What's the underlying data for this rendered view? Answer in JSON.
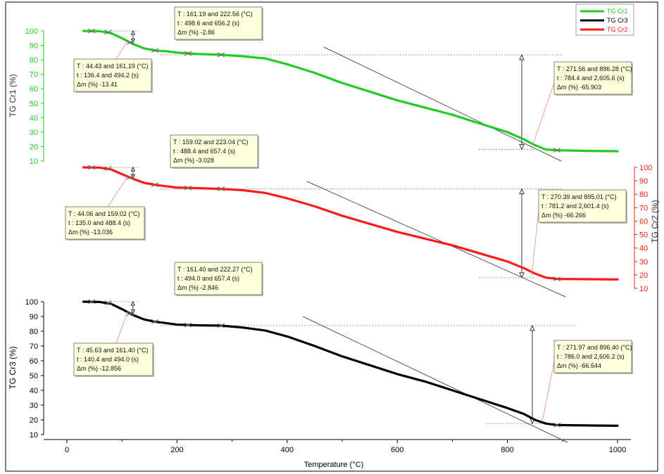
{
  "chart_data": {
    "type": "line",
    "xlabel": "Temperature (°C)",
    "x_ticks": [
      0,
      200,
      400,
      600,
      800,
      1000
    ],
    "xlim": [
      -40,
      1020
    ],
    "legend": {
      "placement": "top-right",
      "entries": [
        {
          "name": "TG Cr1",
          "color": "#22cc22"
        },
        {
          "name": "TG Cr3",
          "color": "#000000"
        },
        {
          "name": "TG Cr2",
          "color": "#ff1a1a"
        }
      ]
    },
    "panels": [
      {
        "series": "TG Cr1",
        "color": "#22cc22",
        "ylabel": "TG Cr1 (%)",
        "y_axis_side": "left",
        "y_ticks": [
          10,
          20,
          30,
          40,
          50,
          60,
          70,
          80,
          90,
          100
        ],
        "ylim": [
          10,
          100
        ],
        "points": [
          [
            30,
            100
          ],
          [
            60,
            99.8
          ],
          [
            80,
            98.5
          ],
          [
            100,
            95
          ],
          [
            120,
            91
          ],
          [
            140,
            88
          ],
          [
            160,
            86.5
          ],
          [
            180,
            86
          ],
          [
            200,
            85
          ],
          [
            240,
            84
          ],
          [
            280,
            83.5
          ],
          [
            320,
            82.5
          ],
          [
            360,
            81
          ],
          [
            400,
            77
          ],
          [
            450,
            71
          ],
          [
            500,
            64
          ],
          [
            550,
            58
          ],
          [
            600,
            52
          ],
          [
            650,
            47
          ],
          [
            700,
            42
          ],
          [
            750,
            36
          ],
          [
            800,
            30
          ],
          [
            830,
            25
          ],
          [
            850,
            21
          ],
          [
            870,
            18
          ],
          [
            890,
            17.5
          ],
          [
            950,
            17
          ],
          [
            1000,
            16.8
          ]
        ],
        "markers": [
          [
            45,
            100
          ],
          [
            75,
            99.2
          ],
          [
            115,
            92
          ],
          [
            160,
            86.5
          ],
          [
            220,
            84.5
          ],
          [
            280,
            83.5
          ],
          [
            890,
            17.5
          ]
        ],
        "annotations": [
          {
            "id": "left",
            "lines": [
              "T : 44.43 and 161.19 (°C)",
              "t : 136.4 and 494.2 (s)",
              "Δm (%) -13.41"
            ]
          },
          {
            "id": "mid",
            "lines": [
              "T : 161.19 and 222.56 (°C)",
              "t : 498.6 and 656.2 (s)",
              "Δm (%) -2.86"
            ]
          },
          {
            "id": "right",
            "lines": [
              "T : 271.56 and 896.28 (°C)",
              "t : 784.4 and 2,605.6 (s)",
              "Δm (%) -65.903"
            ]
          }
        ]
      },
      {
        "series": "TG Cr2",
        "color": "#ff1a1a",
        "ylabel": "TG Cr2 (%)",
        "y_axis_side": "right",
        "y_ticks": [
          10,
          20,
          30,
          40,
          50,
          60,
          70,
          80,
          90,
          100
        ],
        "ylim": [
          10,
          100
        ],
        "points": [
          [
            30,
            100
          ],
          [
            60,
            99.8
          ],
          [
            80,
            98.5
          ],
          [
            100,
            95
          ],
          [
            120,
            91.5
          ],
          [
            140,
            88.5
          ],
          [
            160,
            87
          ],
          [
            180,
            86
          ],
          [
            200,
            85
          ],
          [
            240,
            84.5
          ],
          [
            280,
            84
          ],
          [
            320,
            83
          ],
          [
            360,
            81
          ],
          [
            400,
            77
          ],
          [
            450,
            71
          ],
          [
            500,
            64
          ],
          [
            550,
            58
          ],
          [
            600,
            52
          ],
          [
            650,
            47
          ],
          [
            700,
            42
          ],
          [
            750,
            36
          ],
          [
            800,
            30
          ],
          [
            830,
            25
          ],
          [
            850,
            21
          ],
          [
            870,
            18
          ],
          [
            890,
            17
          ],
          [
            950,
            16.8
          ],
          [
            1000,
            16.6
          ]
        ],
        "markers": [
          [
            45,
            100
          ],
          [
            75,
            99.2
          ],
          [
            115,
            92.5
          ],
          [
            160,
            87
          ],
          [
            220,
            84.8
          ],
          [
            280,
            84
          ],
          [
            890,
            17
          ]
        ],
        "annotations": [
          {
            "id": "left",
            "lines": [
              "T : 44.06 and 159.02 (°C)",
              "t : 135.0 and 488.4 (s)",
              "Δm (%) -13.036"
            ]
          },
          {
            "id": "mid",
            "lines": [
              "T : 159.02 and 223.04 (°C)",
              "t : 488.4 and 657.4 (s)",
              "Δm (%) -3.028"
            ]
          },
          {
            "id": "right",
            "lines": [
              "T : 270.39 and 895.01 (°C)",
              "t : 781.2 and 2,601.4 (s)",
              "Δm (%) -66.266"
            ]
          }
        ]
      },
      {
        "series": "TG Cr3",
        "color": "#000000",
        "ylabel": "TG Cr3 (%)",
        "y_axis_side": "left",
        "y_ticks": [
          10,
          20,
          30,
          40,
          50,
          60,
          70,
          80,
          90,
          100
        ],
        "ylim": [
          10,
          100
        ],
        "points": [
          [
            30,
            100
          ],
          [
            60,
            99.8
          ],
          [
            80,
            98.5
          ],
          [
            100,
            95
          ],
          [
            120,
            91
          ],
          [
            140,
            88
          ],
          [
            160,
            86.5
          ],
          [
            180,
            85.5
          ],
          [
            200,
            84.5
          ],
          [
            240,
            84
          ],
          [
            280,
            83.8
          ],
          [
            320,
            82.5
          ],
          [
            360,
            80.5
          ],
          [
            400,
            76.5
          ],
          [
            450,
            70
          ],
          [
            500,
            63
          ],
          [
            550,
            57
          ],
          [
            600,
            51
          ],
          [
            650,
            46
          ],
          [
            700,
            40
          ],
          [
            750,
            34
          ],
          [
            800,
            28
          ],
          [
            830,
            24
          ],
          [
            850,
            20
          ],
          [
            870,
            17.5
          ],
          [
            890,
            16.5
          ],
          [
            950,
            16.2
          ],
          [
            1000,
            16
          ]
        ],
        "markers": [
          [
            45,
            100
          ],
          [
            75,
            99.2
          ],
          [
            115,
            92
          ],
          [
            160,
            86.5
          ],
          [
            220,
            84.2
          ],
          [
            280,
            83.8
          ],
          [
            890,
            16.5
          ]
        ],
        "annotations": [
          {
            "id": "left",
            "lines": [
              "T : 45.63 and 161.40 (°C)",
              "t : 140.4 and 494.0 (s)",
              "Δm (%) -12.856"
            ]
          },
          {
            "id": "mid",
            "lines": [
              "T : 161.40 and 222.27 (°C)",
              "t : 494.0 and 657.4 (s)",
              "Δm (%) -2.846"
            ]
          },
          {
            "id": "right",
            "lines": [
              "T : 271.97 and 896.40 (°C)",
              "t : 786.0 and 2,606.2 (s)",
              "Δm (%) -66.644"
            ]
          }
        ]
      }
    ]
  }
}
